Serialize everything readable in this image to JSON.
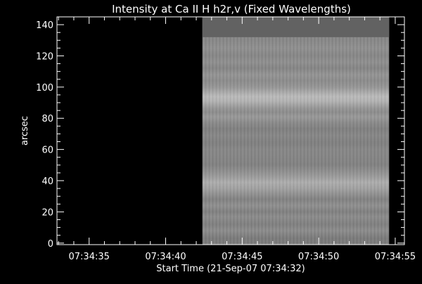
{
  "chart_data": {
    "type": "heatmap",
    "title": "Intensity at Ca II H h2r,v (Fixed Wavelengths)",
    "xlabel": "Start Time (21-Sep-07 07:34:32)",
    "ylabel": "arcsec",
    "xlim_seconds_after_start": [
      0.9,
      23.6
    ],
    "ylim": [
      -1,
      145
    ],
    "x_ticks": [
      {
        "value": 3,
        "label": "07:34:35"
      },
      {
        "value": 8,
        "label": "07:34:40"
      },
      {
        "value": 13,
        "label": "07:34:45"
      },
      {
        "value": 18,
        "label": "07:34:50"
      },
      {
        "value": 23,
        "label": "07:34:55"
      }
    ],
    "x_minor_tick_step": 1,
    "y_ticks": [
      0,
      20,
      40,
      60,
      80,
      100,
      120,
      140
    ],
    "y_minor_tick_step": 5,
    "image_extent": {
      "x_start": 10.4,
      "x_end": 22.6,
      "y_start": -1,
      "y_end": 145
    },
    "fill_region": {
      "y_start": 132,
      "y_end": 145,
      "color": "#626262"
    },
    "background_color": "#000000",
    "axis_color": "#ffffff",
    "colormap": "grayscale",
    "intensity_profile": [
      {
        "y": -1,
        "level": 0.49
      },
      {
        "y": 3,
        "level": 0.48
      },
      {
        "y": 8,
        "level": 0.55
      },
      {
        "y": 12,
        "level": 0.5
      },
      {
        "y": 17,
        "level": 0.55
      },
      {
        "y": 20,
        "level": 0.5
      },
      {
        "y": 24,
        "level": 0.56
      },
      {
        "y": 28,
        "level": 0.51
      },
      {
        "y": 32,
        "level": 0.58
      },
      {
        "y": 35,
        "level": 0.63
      },
      {
        "y": 39,
        "level": 0.68
      },
      {
        "y": 42,
        "level": 0.62
      },
      {
        "y": 46,
        "level": 0.56
      },
      {
        "y": 50,
        "level": 0.51
      },
      {
        "y": 55,
        "level": 0.52
      },
      {
        "y": 60,
        "level": 0.53
      },
      {
        "y": 64,
        "level": 0.5
      },
      {
        "y": 69,
        "level": 0.53
      },
      {
        "y": 73,
        "level": 0.5
      },
      {
        "y": 77,
        "level": 0.54
      },
      {
        "y": 81,
        "level": 0.6
      },
      {
        "y": 84,
        "level": 0.55
      },
      {
        "y": 87,
        "level": 0.6
      },
      {
        "y": 91,
        "level": 0.7
      },
      {
        "y": 94,
        "level": 0.73
      },
      {
        "y": 97,
        "level": 0.66
      },
      {
        "y": 100,
        "level": 0.59
      },
      {
        "y": 104,
        "level": 0.55
      },
      {
        "y": 108,
        "level": 0.58
      },
      {
        "y": 112,
        "level": 0.52
      },
      {
        "y": 116,
        "level": 0.56
      },
      {
        "y": 120,
        "level": 0.53
      },
      {
        "y": 125,
        "level": 0.56
      },
      {
        "y": 128,
        "level": 0.54
      },
      {
        "y": 131,
        "level": 0.53
      }
    ]
  }
}
